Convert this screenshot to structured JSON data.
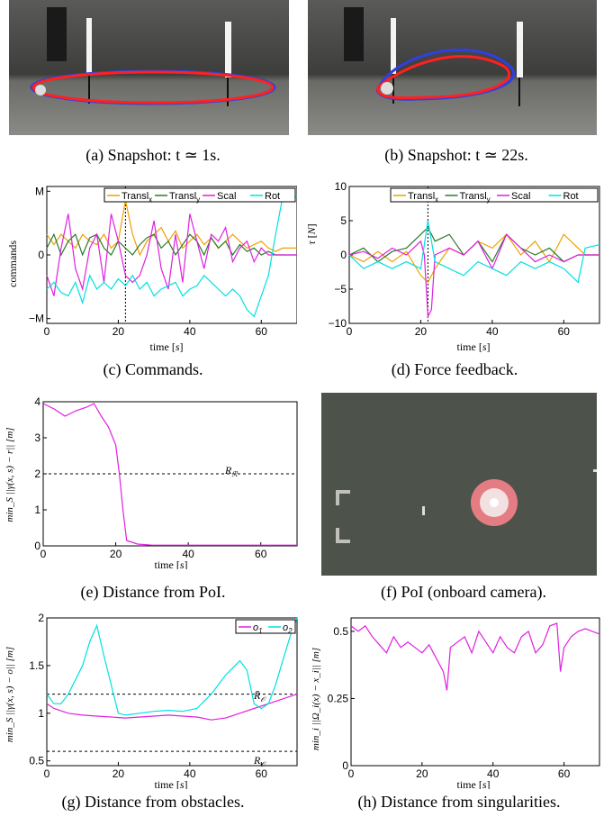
{
  "captions": {
    "a": "(a) Snapshot: t ≃ 1s.",
    "b": "(b) Snapshot: t ≃ 22s.",
    "c": "(c) Commands.",
    "d": "(d) Force feedback.",
    "e": "(e) Distance from PoI.",
    "f": "(f) PoI (onboard camera).",
    "g": "(g) Distance from obstacles.",
    "h": "(h) Distance from singularities."
  },
  "chart_data": [
    {
      "id": "c",
      "type": "line",
      "xlabel": "time [s]",
      "ylabel": "commands",
      "xlim": [
        0,
        70
      ],
      "ylim": [
        -1,
        1
      ],
      "xticks": [
        "0",
        "20",
        "40",
        "60"
      ],
      "yticks": [
        "−M",
        "0",
        "M"
      ],
      "vline": 22,
      "legend": "top-right",
      "series": [
        {
          "name": "Translx",
          "color": "#f0a000",
          "x": [
            0,
            2,
            4,
            6,
            8,
            10,
            12,
            14,
            16,
            18,
            20,
            22,
            24,
            26,
            28,
            30,
            32,
            34,
            36,
            38,
            40,
            42,
            44,
            46,
            48,
            50,
            52,
            54,
            56,
            58,
            60,
            62,
            64,
            66,
            70
          ],
          "y": [
            0.3,
            0.15,
            0.3,
            0.2,
            0.1,
            0.3,
            0.2,
            0.15,
            0.3,
            0.1,
            0.2,
            0.8,
            0.3,
            0.0,
            0.2,
            0.3,
            0.4,
            0.2,
            0.35,
            0.1,
            0.2,
            0.3,
            0.15,
            0.25,
            0.1,
            0.2,
            0.3,
            0.2,
            0.1,
            0.15,
            0.2,
            0.1,
            0.05,
            0.1,
            0.1
          ]
        },
        {
          "name": "Transly",
          "color": "#2a7a2a",
          "x": [
            0,
            2,
            4,
            6,
            8,
            10,
            12,
            14,
            16,
            18,
            20,
            22,
            24,
            26,
            28,
            30,
            32,
            34,
            36,
            38,
            40,
            42,
            44,
            46,
            48,
            50,
            52,
            54,
            56,
            58,
            60,
            62,
            64,
            66,
            70
          ],
          "y": [
            0.1,
            0.3,
            0.0,
            0.2,
            0.3,
            0.0,
            0.25,
            0.3,
            0.1,
            0.0,
            0.2,
            0.1,
            0.0,
            0.15,
            0.25,
            0.3,
            0.1,
            0.2,
            0.0,
            0.15,
            0.3,
            0.2,
            0.0,
            0.25,
            0.1,
            0.2,
            0.0,
            0.15,
            0.05,
            0.1,
            0.0,
            0.05,
            0.0,
            0.0,
            0.0
          ]
        },
        {
          "name": "Scal",
          "color": "#e020e0",
          "x": [
            0,
            2,
            4,
            6,
            8,
            10,
            12,
            14,
            16,
            18,
            20,
            22,
            24,
            26,
            28,
            30,
            32,
            34,
            36,
            38,
            40,
            42,
            44,
            46,
            48,
            50,
            52,
            54,
            56,
            58,
            60,
            62,
            64,
            66,
            70
          ],
          "y": [
            -0.3,
            -0.6,
            0.1,
            0.6,
            -0.2,
            -0.5,
            0.1,
            0.3,
            -0.4,
            0.6,
            0.2,
            -0.3,
            -0.4,
            -0.3,
            0.0,
            0.5,
            -0.2,
            -0.5,
            0.3,
            -0.4,
            0.6,
            0.2,
            -0.2,
            0.3,
            0.2,
            0.4,
            -0.1,
            0.1,
            0.2,
            -0.1,
            0.1,
            0.0,
            0.0,
            0.0,
            0.0
          ]
        },
        {
          "name": "Rot",
          "color": "#00e0e0",
          "x": [
            0,
            2,
            4,
            6,
            8,
            10,
            12,
            14,
            16,
            18,
            20,
            22,
            24,
            26,
            28,
            30,
            32,
            34,
            36,
            38,
            40,
            42,
            44,
            46,
            48,
            50,
            52,
            54,
            56,
            58,
            60,
            62,
            64,
            66,
            70
          ],
          "y": [
            -0.5,
            -0.4,
            -0.55,
            -0.6,
            -0.4,
            -0.7,
            -0.3,
            -0.5,
            -0.4,
            -0.5,
            -0.35,
            -0.45,
            -0.3,
            -0.5,
            -0.4,
            -0.6,
            -0.5,
            -0.45,
            -0.4,
            -0.6,
            -0.5,
            -0.45,
            -0.3,
            -0.4,
            -0.5,
            -0.6,
            -0.5,
            -0.6,
            -0.8,
            -0.9,
            -0.6,
            -0.3,
            0.3,
            0.85,
            0.85
          ]
        }
      ]
    },
    {
      "id": "d",
      "type": "line",
      "xlabel": "time [s]",
      "ylabel": "τ [N]",
      "xlim": [
        0,
        70
      ],
      "ylim": [
        -10,
        10
      ],
      "xticks": [
        "0",
        "20",
        "40",
        "60"
      ],
      "yticks": [
        "−10",
        "−5",
        "0",
        "5",
        "10"
      ],
      "vline": 22,
      "legend": "top-right",
      "series": [
        {
          "name": "Translx",
          "color": "#f0a000",
          "x": [
            0,
            4,
            8,
            12,
            16,
            20,
            22,
            24,
            28,
            32,
            36,
            40,
            44,
            48,
            52,
            56,
            60,
            64,
            66,
            70
          ],
          "y": [
            0,
            -1,
            0.5,
            -1,
            0.5,
            -3,
            -4,
            -2,
            1,
            0,
            2,
            1,
            3,
            0,
            2,
            -1,
            3,
            1,
            0,
            0
          ]
        },
        {
          "name": "Transly",
          "color": "#2a7a2a",
          "x": [
            0,
            4,
            8,
            12,
            16,
            20,
            22,
            24,
            28,
            32,
            36,
            40,
            44,
            48,
            52,
            56,
            60,
            64,
            66,
            70
          ],
          "y": [
            0,
            1,
            -1,
            0.5,
            1,
            3,
            4,
            2,
            3,
            0,
            2,
            -1,
            3,
            1,
            0,
            1,
            -1,
            0,
            0,
            0
          ]
        },
        {
          "name": "Scal",
          "color": "#e020e0",
          "x": [
            0,
            4,
            8,
            12,
            16,
            20,
            21,
            22,
            23,
            24,
            28,
            32,
            36,
            40,
            44,
            48,
            52,
            56,
            60,
            64,
            70
          ],
          "y": [
            0,
            0.5,
            -0.5,
            1,
            0,
            2,
            0,
            -9,
            -8,
            0,
            1,
            0,
            2,
            -2,
            3,
            1,
            -1,
            0,
            -1,
            0,
            0
          ]
        },
        {
          "name": "Rot",
          "color": "#00e0e0",
          "x": [
            0,
            4,
            8,
            12,
            16,
            20,
            22,
            24,
            28,
            32,
            36,
            40,
            44,
            48,
            52,
            56,
            60,
            64,
            66,
            70
          ],
          "y": [
            0,
            -2,
            -1,
            -2,
            -1,
            -2,
            5,
            -1,
            -2,
            -3,
            -1,
            -2,
            -3,
            -1,
            -2,
            -1,
            -2,
            -4,
            1,
            1.5
          ]
        }
      ]
    },
    {
      "id": "e",
      "type": "line",
      "xlabel": "time [s]",
      "ylabel": "min_S ||γ(x, s) − r|| [m]",
      "xlim": [
        0,
        70
      ],
      "ylim": [
        0,
        4
      ],
      "xticks": [
        "0",
        "20",
        "40",
        "60"
      ],
      "yticks": [
        "0",
        "1",
        "2",
        "3",
        "4"
      ],
      "hlines": [
        {
          "y": 2,
          "label": "R_R"
        }
      ],
      "series": [
        {
          "name": "",
          "color": "#e020e0",
          "x": [
            0,
            3,
            6,
            9,
            12,
            14,
            16,
            18,
            20,
            21,
            22,
            23,
            26,
            30,
            40,
            50,
            60,
            70
          ],
          "y": [
            3.95,
            3.8,
            3.6,
            3.75,
            3.85,
            3.95,
            3.6,
            3.3,
            2.8,
            2.0,
            1.0,
            0.15,
            0.05,
            0.02,
            0.02,
            0.02,
            0.02,
            0.02
          ]
        }
      ]
    },
    {
      "id": "g",
      "type": "line",
      "xlabel": "time [s]",
      "ylabel": "min_S ||γ(x, s) − o|| [m]",
      "xlim": [
        0,
        70
      ],
      "ylim": [
        0.45,
        2
      ],
      "xticks": [
        "0",
        "20",
        "40",
        "60"
      ],
      "yticks": [
        "0.5",
        "1",
        "1.5",
        "2"
      ],
      "legend": "top-right",
      "hlines": [
        {
          "y": 1.2,
          "label": "R̄_O"
        },
        {
          "y": 0.6,
          "label": "R_O"
        }
      ],
      "series": [
        {
          "name": "o1",
          "color": "#e020e0",
          "x": [
            0,
            2,
            6,
            10,
            14,
            18,
            22,
            26,
            30,
            34,
            38,
            42,
            46,
            50,
            54,
            58,
            62,
            66,
            70
          ],
          "y": [
            1.1,
            1.05,
            1.0,
            0.98,
            0.97,
            0.96,
            0.95,
            0.96,
            0.97,
            0.98,
            0.97,
            0.96,
            0.93,
            0.95,
            1.0,
            1.05,
            1.1,
            1.15,
            1.2
          ]
        },
        {
          "name": "o2",
          "color": "#00e0e0",
          "x": [
            0,
            2,
            4,
            6,
            8,
            10,
            12,
            14,
            16,
            18,
            20,
            22,
            26,
            30,
            34,
            38,
            42,
            46,
            50,
            54,
            56,
            58,
            60,
            62,
            64,
            66,
            68,
            70
          ],
          "y": [
            1.2,
            1.1,
            1.1,
            1.2,
            1.35,
            1.5,
            1.75,
            1.92,
            1.6,
            1.3,
            1.0,
            0.98,
            1.0,
            1.02,
            1.03,
            1.02,
            1.05,
            1.2,
            1.4,
            1.55,
            1.45,
            1.1,
            1.05,
            1.1,
            1.3,
            1.55,
            1.8,
            2.0
          ]
        }
      ]
    },
    {
      "id": "h",
      "type": "line",
      "xlabel": "time [s]",
      "ylabel": "min_i ||Ω_i(x) − x_i|| [m]",
      "xlim": [
        0,
        70
      ],
      "ylim": [
        0,
        0.55
      ],
      "xticks": [
        "0",
        "20",
        "40",
        "60"
      ],
      "yticks": [
        "0",
        "0.25",
        "0.5"
      ],
      "series": [
        {
          "name": "",
          "color": "#e020e0",
          "x": [
            0,
            2,
            4,
            6,
            8,
            10,
            12,
            14,
            16,
            18,
            20,
            22,
            24,
            26,
            27,
            28,
            30,
            32,
            34,
            36,
            38,
            40,
            42,
            44,
            46,
            48,
            50,
            52,
            54,
            56,
            58,
            59,
            60,
            62,
            64,
            66,
            68,
            70
          ],
          "y": [
            0.52,
            0.5,
            0.52,
            0.48,
            0.45,
            0.42,
            0.48,
            0.44,
            0.46,
            0.44,
            0.42,
            0.45,
            0.4,
            0.35,
            0.28,
            0.44,
            0.46,
            0.48,
            0.42,
            0.5,
            0.46,
            0.42,
            0.48,
            0.44,
            0.42,
            0.48,
            0.5,
            0.42,
            0.45,
            0.52,
            0.53,
            0.35,
            0.44,
            0.48,
            0.5,
            0.51,
            0.5,
            0.49
          ]
        }
      ]
    }
  ]
}
